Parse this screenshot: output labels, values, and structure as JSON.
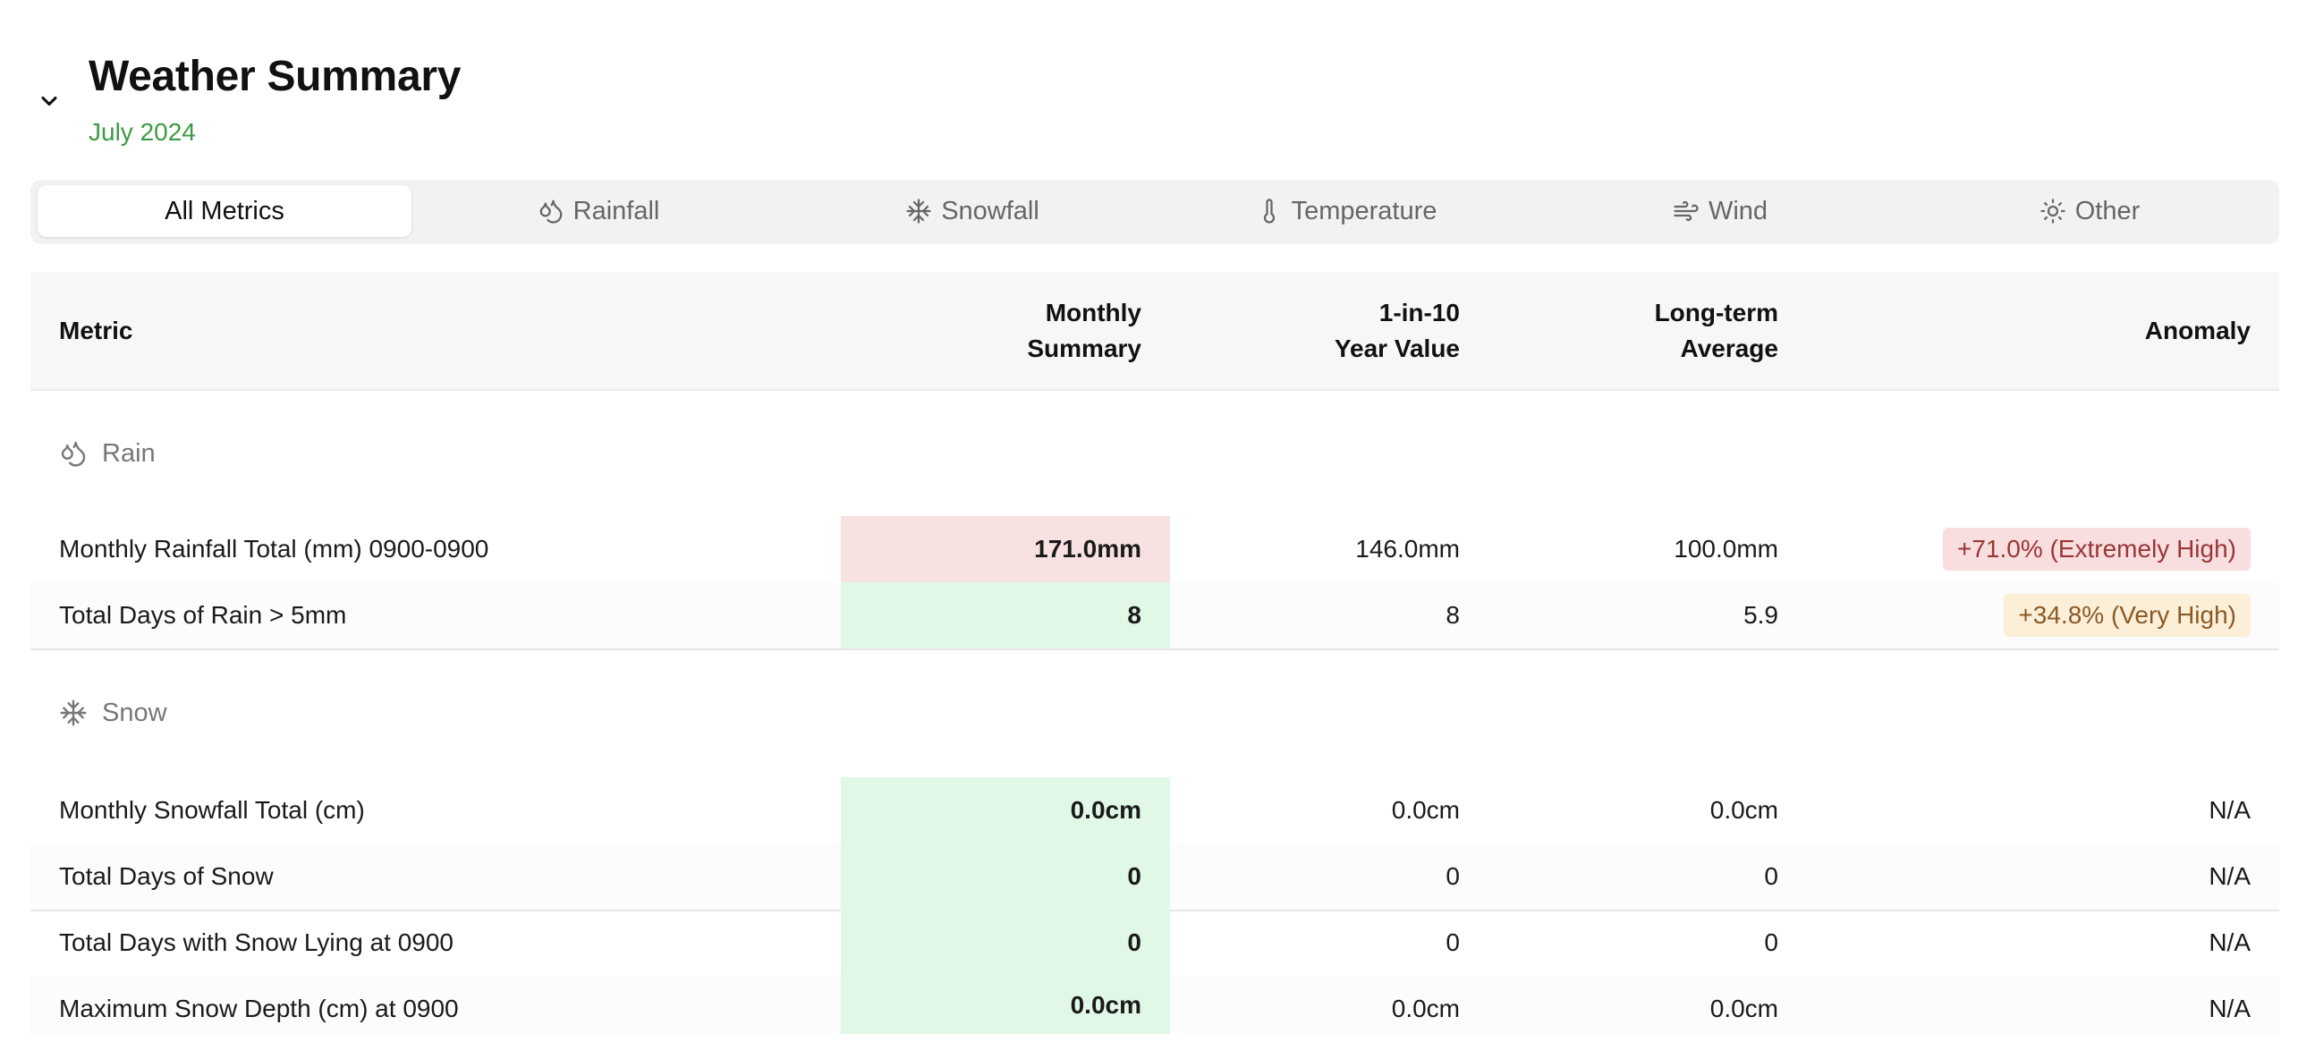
{
  "header": {
    "title": "Weather Summary",
    "subtitle": "July 2024"
  },
  "tabs": [
    {
      "label": "All Metrics",
      "icon": "",
      "active": true
    },
    {
      "label": "Rainfall",
      "icon": "droplets-icon",
      "active": false
    },
    {
      "label": "Snowfall",
      "icon": "snowflake-icon",
      "active": false
    },
    {
      "label": "Temperature",
      "icon": "thermometer-icon",
      "active": false
    },
    {
      "label": "Wind",
      "icon": "wind-icon",
      "active": false
    },
    {
      "label": "Other",
      "icon": "sun-icon",
      "active": false
    }
  ],
  "table": {
    "columns": {
      "metric": "Metric",
      "monthly_l1": "Monthly",
      "monthly_l2": "Summary",
      "tenyr_l1": "1-in-10",
      "tenyr_l2": "Year Value",
      "lta_l1": "Long-term",
      "lta_l2": "Average",
      "anomaly": "Anomaly"
    },
    "groups": [
      {
        "label": "Rain",
        "icon": "droplets-icon",
        "rows": [
          {
            "metric": "Monthly Rainfall Total (mm) 0900-0900",
            "monthly": "171.0mm",
            "monthly_highlight": "#f8e1e1",
            "ten_year": "146.0mm",
            "long_term": "100.0mm",
            "anomaly": "+71.0% (Extremely High)",
            "anomaly_color": "#9a3636"
          },
          {
            "metric": "Total Days of Rain > 5mm",
            "monthly": "8",
            "monthly_highlight": "#e1f8e7",
            "ten_year": "8",
            "long_term": "5.9",
            "anomaly": "+34.8% (Very High)",
            "anomaly_color": "#8a5a26"
          }
        ]
      },
      {
        "label": "Snow",
        "icon": "snowflake-icon",
        "rows": [
          {
            "metric": "Monthly Snowfall Total (cm)",
            "monthly": "0.0cm",
            "monthly_highlight": "#e1f8e7",
            "ten_year": "0.0cm",
            "long_term": "0.0cm",
            "anomaly": "N/A"
          },
          {
            "metric": "Total Days of Snow",
            "monthly": "0",
            "monthly_highlight": "#e1f8e7",
            "ten_year": "0",
            "long_term": "0",
            "anomaly": "N/A"
          },
          {
            "metric": "Total Days with Snow Lying at 0900",
            "monthly": "0",
            "monthly_highlight": "#e1f8e7",
            "ten_year": "0",
            "long_term": "0",
            "anomaly": "N/A"
          },
          {
            "metric": "Maximum Snow Depth (cm) at 0900",
            "monthly": "0.0cm",
            "monthly_highlight": "#e1f8e7",
            "ten_year": "0.0cm",
            "long_term": "0.0cm",
            "anomaly": "N/A"
          }
        ]
      }
    ]
  }
}
